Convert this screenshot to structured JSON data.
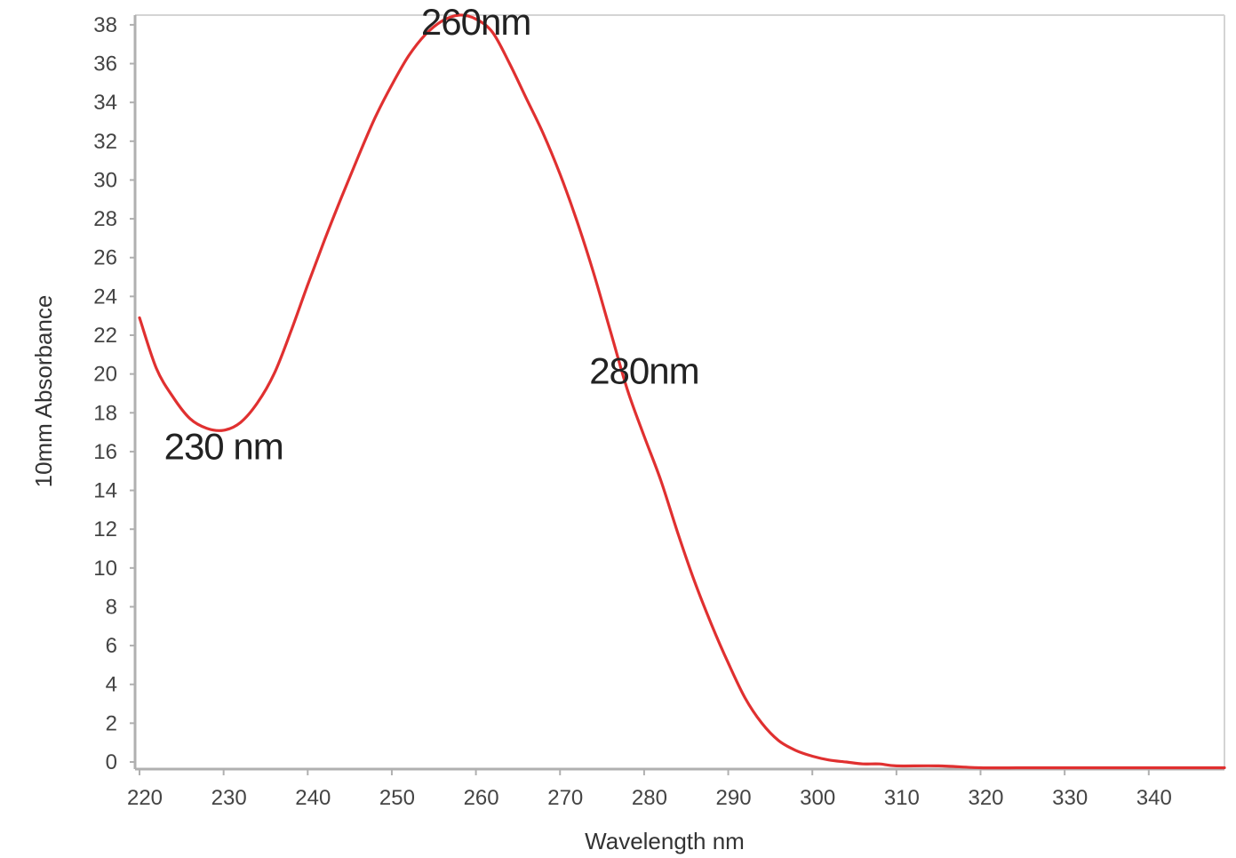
{
  "chart_data": {
    "type": "line",
    "title": "",
    "xlabel": "Wavelength nm",
    "ylabel": "10mm Absorbance",
    "xlim": [
      220,
      349
    ],
    "ylim": [
      0,
      38.5
    ],
    "xticks": [
      220,
      230,
      240,
      250,
      260,
      270,
      280,
      290,
      300,
      310,
      320,
      330,
      340
    ],
    "yticks": [
      0,
      2,
      4,
      6,
      8,
      10,
      12,
      14,
      16,
      18,
      20,
      22,
      24,
      26,
      28,
      30,
      32,
      34,
      36,
      38
    ],
    "grid": false,
    "legend": "none",
    "line_color": "#e03030",
    "series": [
      {
        "x": [
          220,
          222,
          224,
          226,
          228,
          230,
          232,
          234,
          236,
          238,
          240,
          242,
          244,
          246,
          248,
          250,
          252,
          254,
          256,
          258,
          260,
          262,
          264,
          266,
          268,
          270,
          272,
          274,
          276,
          278,
          280,
          282,
          284,
          286,
          288,
          290,
          292,
          294,
          296,
          298,
          300,
          302,
          304,
          306,
          308,
          310,
          315,
          320,
          325,
          330,
          335,
          340,
          345,
          349
        ],
        "y": [
          22.9,
          20.3,
          18.8,
          17.7,
          17.2,
          17.1,
          17.5,
          18.5,
          20.0,
          22.2,
          24.6,
          26.9,
          29.1,
          31.2,
          33.2,
          34.9,
          36.4,
          37.5,
          38.2,
          38.5,
          38.3,
          37.6,
          36.0,
          34.2,
          32.4,
          30.3,
          27.9,
          25.2,
          22.2,
          19.2,
          16.8,
          14.5,
          11.8,
          9.3,
          7.1,
          5.1,
          3.3,
          2.0,
          1.1,
          0.6,
          0.3,
          0.1,
          0.0,
          -0.1,
          -0.1,
          -0.2,
          -0.2,
          -0.3,
          -0.3,
          -0.3,
          -0.3,
          -0.3,
          -0.3,
          -0.3
        ]
      }
    ],
    "annotations": [
      {
        "text": "230 nm",
        "x": 230,
        "y": 15.6
      },
      {
        "text": "260nm",
        "x": 260,
        "y": 37.5
      },
      {
        "text": "280nm",
        "x": 280,
        "y": 19.5
      }
    ]
  }
}
